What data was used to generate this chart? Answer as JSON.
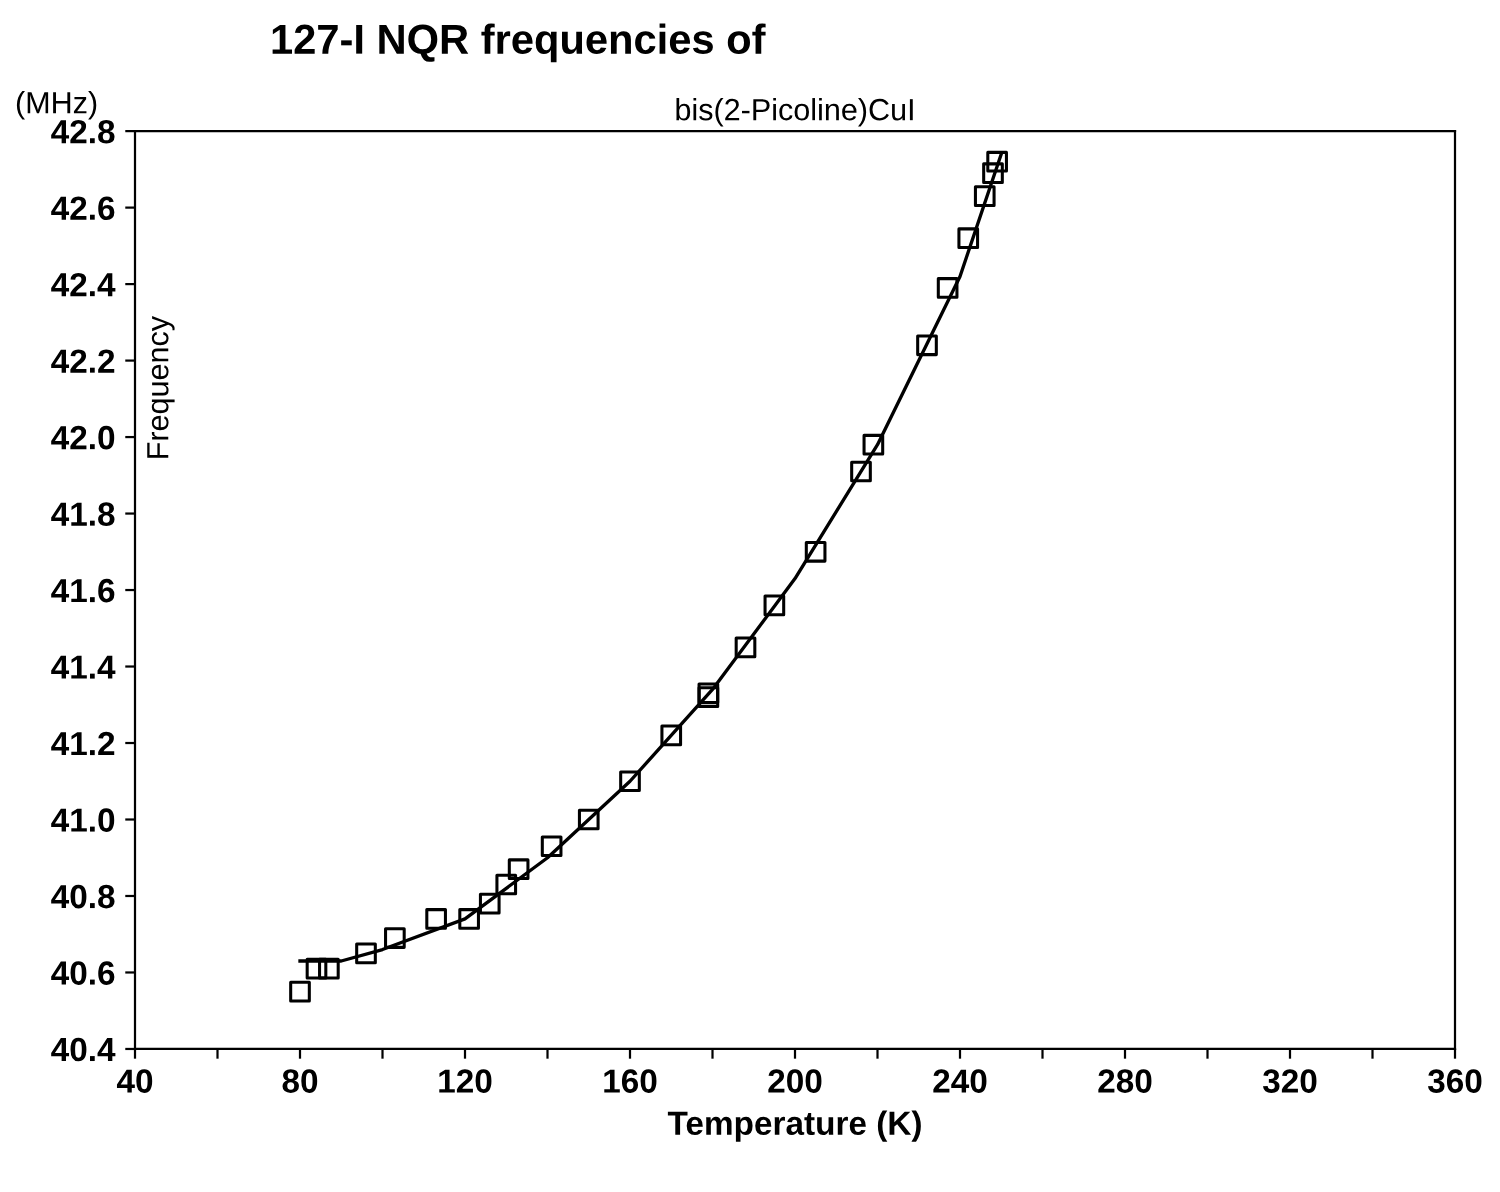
{
  "chart_data": {
    "type": "scatter",
    "title": "127-I NQR frequencies of",
    "subtitle": "bis(2-Picoline)CuI",
    "xlabel": "Temperature (K)",
    "ylabel": "Frequency",
    "annotations": [
      "(MHz)"
    ],
    "series": [
      {
        "color": "#000000",
        "marker": "square",
        "x": [
          80,
          84,
          87,
          96,
          103,
          113,
          121,
          126,
          130,
          133,
          141,
          150,
          160,
          170,
          179,
          179,
          188,
          195,
          205,
          216,
          219,
          232,
          237,
          242,
          246,
          248,
          249
        ],
        "values": [
          40.55,
          40.61,
          40.61,
          40.65,
          40.69,
          40.74,
          40.74,
          40.78,
          40.83,
          40.87,
          40.93,
          41.0,
          41.1,
          41.22,
          41.33,
          41.32,
          41.45,
          41.56,
          41.7,
          41.91,
          41.98,
          42.24,
          42.39,
          42.52,
          42.63,
          42.69,
          42.72
        ]
      },
      {
        "type": "line",
        "color": "#000000",
        "marker": "none",
        "line_style": "solid",
        "x": [
          80,
          90,
          100,
          120,
          140,
          160,
          180,
          200,
          220,
          240,
          250
        ],
        "values": [
          40.63,
          40.63,
          40.66,
          40.74,
          40.9,
          41.1,
          41.34,
          41.63,
          41.98,
          42.42,
          42.74
        ]
      }
    ],
    "xlim": [
      40,
      360
    ],
    "ylim": [
      40.4,
      42.8
    ],
    "xticks": [
      40,
      {
        "value": 60,
        "label": null
      },
      80,
      {
        "value": 100,
        "label": null
      },
      120,
      {
        "value": 140,
        "label": null
      },
      160,
      {
        "value": 180,
        "label": null
      },
      200,
      {
        "value": 220,
        "label": null
      },
      240,
      {
        "value": 260,
        "label": null
      },
      280,
      {
        "value": 300,
        "label": null
      },
      320,
      {
        "value": 340,
        "label": null
      },
      360
    ],
    "yticks": [
      {
        "value": 40.4,
        "label": "40.4"
      },
      {
        "value": 40.6,
        "label": "40.6"
      },
      {
        "value": 40.8,
        "label": "40.8"
      },
      {
        "value": 41.0,
        "label": "41.0"
      },
      {
        "value": 41.2,
        "label": "41.2"
      },
      {
        "value": 41.4,
        "label": "41.4"
      },
      {
        "value": 41.6,
        "label": "41.6"
      },
      {
        "value": 41.8,
        "label": "41.8"
      },
      {
        "value": 42.0,
        "label": "42.0"
      },
      {
        "value": 42.2,
        "label": "42.2"
      },
      {
        "value": 42.4,
        "label": "42.4"
      },
      {
        "value": 42.6,
        "label": "42.6"
      },
      {
        "value": 42.8,
        "label": "42.8"
      }
    ],
    "grid": false,
    "legend": false
  }
}
